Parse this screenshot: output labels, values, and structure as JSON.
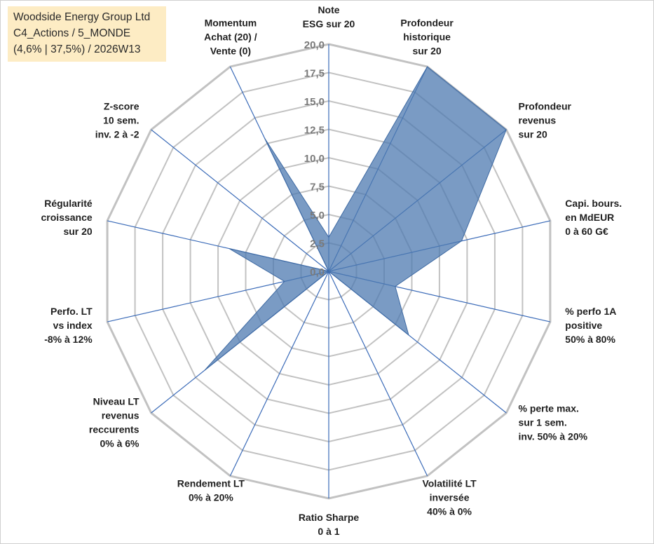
{
  "header": {
    "line1": "Woodside Energy Group Ltd",
    "line2": "C4_Actions / 5_MONDE",
    "line3": "(4,6% | 37,5%) / 2026W13"
  },
  "chart_data": {
    "type": "radar",
    "title": "",
    "rlim": [
      0,
      20
    ],
    "ticks": [
      "0,0",
      "2,5",
      "5,0",
      "7,5",
      "10,0",
      "12,5",
      "15,0",
      "17,5",
      "20,0"
    ],
    "tick_values": [
      0,
      2.5,
      5,
      7.5,
      10,
      12.5,
      15,
      17.5,
      20
    ],
    "grid": true,
    "colors": {
      "fill": "#4e7ab0",
      "spoke": "#3b6bb8",
      "grid": "#c2c2c2"
    },
    "axes": [
      {
        "lines": [
          "Note",
          "ESG sur 20"
        ]
      },
      {
        "lines": [
          "Profondeur",
          "historique",
          "sur 20"
        ]
      },
      {
        "lines": [
          "Profondeur",
          "revenus",
          "sur 20"
        ]
      },
      {
        "lines": [
          "Capi. bours.",
          "en MdEUR",
          "0 à 60 G€"
        ]
      },
      {
        "lines": [
          "% perfo 1A",
          "positive",
          "50% à 80%"
        ]
      },
      {
        "lines": [
          "% perte max.",
          "sur 1 sem.",
          "inv. 50% à 20%"
        ]
      },
      {
        "lines": [
          "Volatilité LT",
          "inversée",
          "40% à 0%"
        ]
      },
      {
        "lines": [
          "Ratio Sharpe",
          "0 à 1"
        ]
      },
      {
        "lines": [
          "Rendement LT",
          "0% à 20%"
        ]
      },
      {
        "lines": [
          "Niveau LT",
          "revenus",
          "reccurents",
          "0% à 6%"
        ]
      },
      {
        "lines": [
          "Perfo. LT",
          "vs index",
          "-8% à 12%"
        ]
      },
      {
        "lines": [
          "Régularité",
          "croissance",
          "sur 20"
        ]
      },
      {
        "lines": [
          "Z-score",
          "10 sem.",
          "inv. 2 à -2"
        ]
      },
      {
        "lines": [
          "Momentum",
          "Achat (20) /",
          "Vente (0)"
        ]
      }
    ],
    "series": [
      {
        "values": [
          3.0,
          20.0,
          20.0,
          12.0,
          6.0,
          9.0,
          0.0,
          0.0,
          0.0,
          14.0,
          4.0,
          9.0,
          0.0,
          13.0
        ]
      }
    ]
  }
}
